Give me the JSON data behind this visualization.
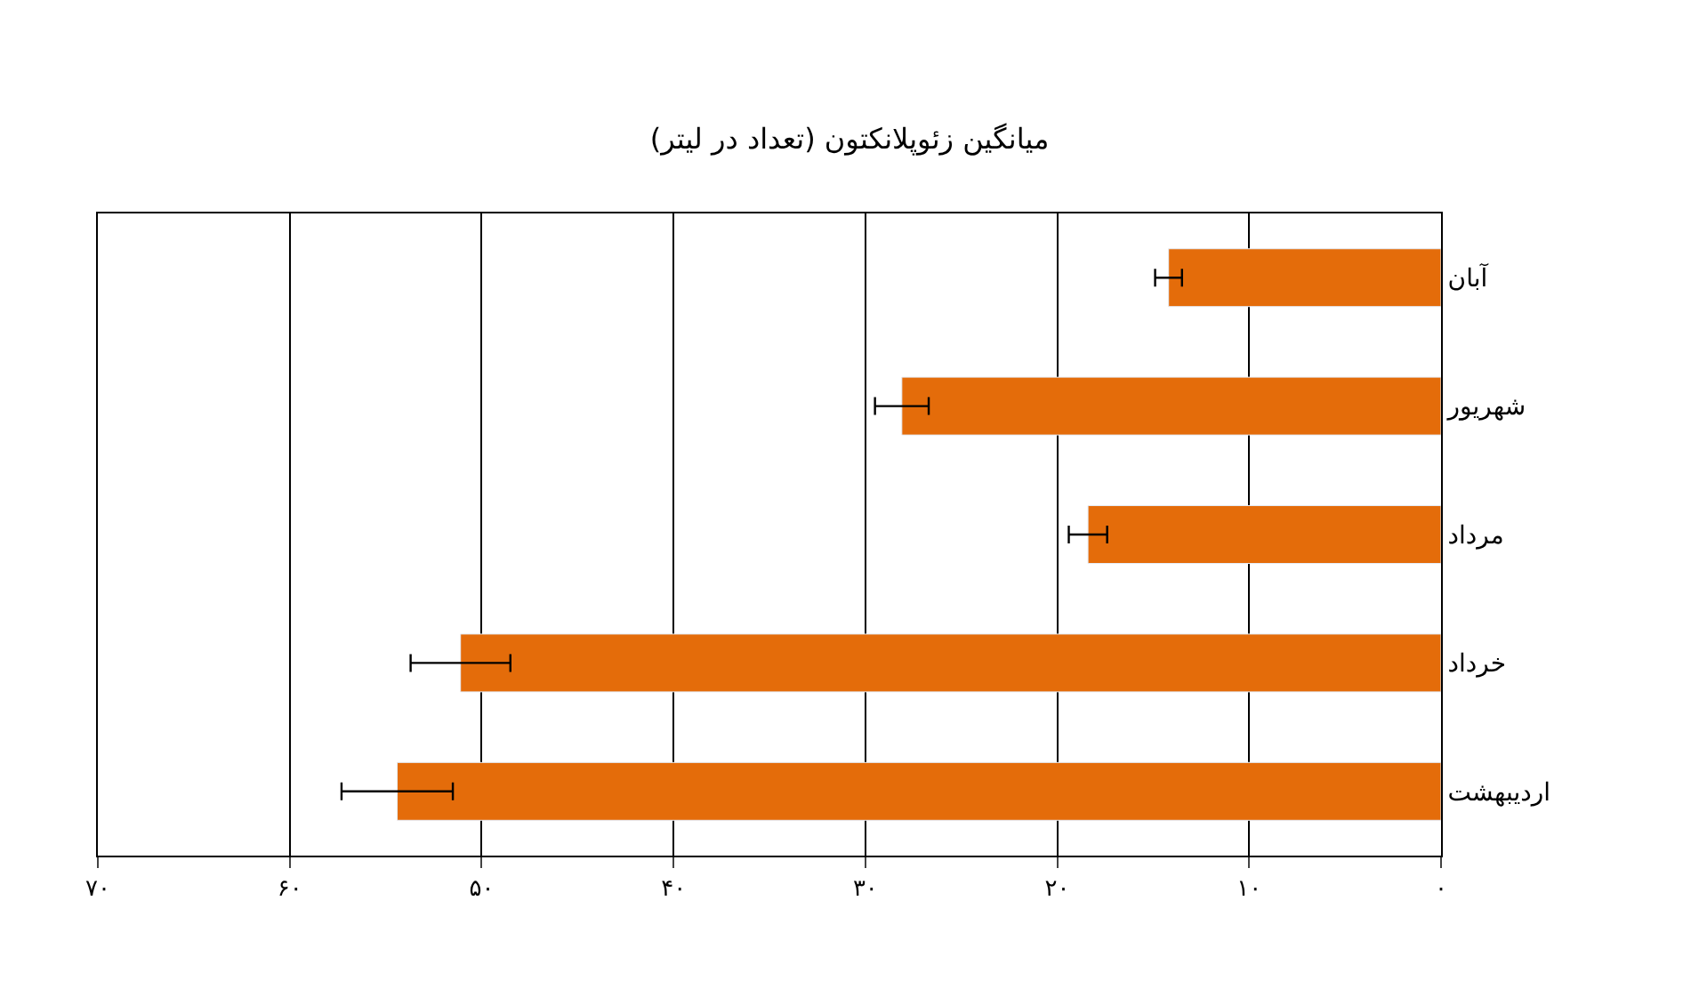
{
  "chart_data": {
    "type": "bar",
    "orientation": "horizontal",
    "title": "میانگین زئوپلانکتون (تعداد در لیتر)",
    "categories": [
      "آبان",
      "شهریور",
      "مرداد",
      "خرداد",
      "اردیبهشت"
    ],
    "values": [
      14.2,
      28.1,
      18.4,
      51.1,
      54.4
    ],
    "errors": [
      0.7,
      1.4,
      1.0,
      2.6,
      2.9
    ],
    "color": "#e46c0a",
    "xlim": [
      70,
      0
    ],
    "xticks": [
      {
        "value": 70,
        "label": "۷۰"
      },
      {
        "value": 60,
        "label": "۶۰"
      },
      {
        "value": 50,
        "label": "۵۰"
      },
      {
        "value": 40,
        "label": "۴۰"
      },
      {
        "value": 30,
        "label": "۳۰"
      },
      {
        "value": 20,
        "label": "۲۰"
      },
      {
        "value": 10,
        "label": "۱۰"
      },
      {
        "value": 0,
        "label": "۰"
      }
    ],
    "grid": "x",
    "legend": false
  }
}
